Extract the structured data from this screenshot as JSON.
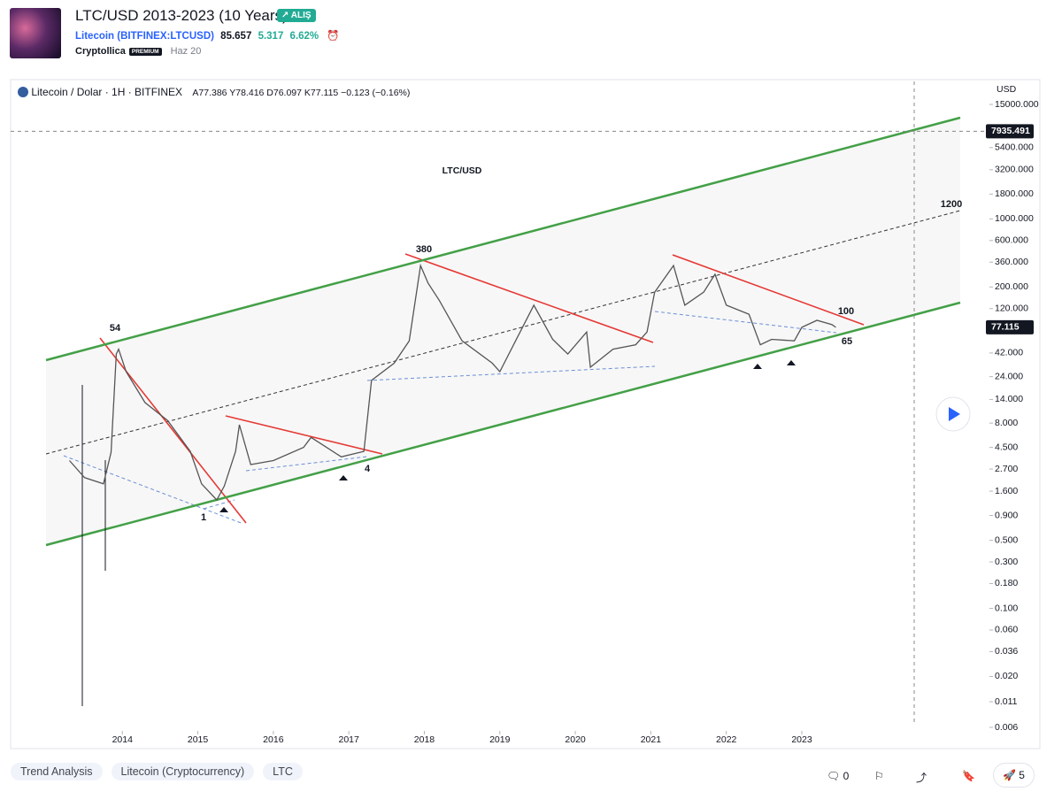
{
  "header": {
    "title": "LTC/USD 2013-2023 (10 Years)",
    "badge": "ALIŞ",
    "symbol_name": "Litecoin",
    "symbol_code": "(BITFINEX:LTCUSD)",
    "price": "85.657",
    "change": "5.317",
    "change_pct": "6.62%",
    "author": "Cryptollica",
    "author_badge": "PREMIUM",
    "date": "Haz 20"
  },
  "legend": {
    "symbol": "Litecoin / Dolar · 1H · BITFINEX",
    "ohlc": "A77.386 Y78.416 D76.097 K77.115 −0.123 (−0.16%)"
  },
  "chart_data": {
    "type": "line",
    "title": "LTC/USD",
    "y_axis_label": "USD",
    "log_scale": true,
    "color": "#555555",
    "x": [
      2013.3,
      2013.5,
      2013.75,
      2013.85,
      2013.92,
      2013.95,
      2014.05,
      2014.3,
      2014.6,
      2014.9,
      2015.05,
      2015.25,
      2015.35,
      2015.5,
      2015.55,
      2015.7,
      2016.0,
      2016.4,
      2016.5,
      2016.9,
      2017.2,
      2017.3,
      2017.6,
      2017.8,
      2017.95,
      2018.05,
      2018.2,
      2018.5,
      2018.9,
      2019.0,
      2019.3,
      2019.45,
      2019.7,
      2019.9,
      2020.15,
      2020.2,
      2020.5,
      2020.8,
      2020.95,
      2021.05,
      2021.3,
      2021.45,
      2021.7,
      2021.85,
      2022.0,
      2022.3,
      2022.45,
      2022.6,
      2022.9,
      2023.0,
      2023.2,
      2023.4,
      2023.45
    ],
    "values": [
      3.3,
      2.2,
      1.9,
      4.0,
      41,
      46,
      27,
      13,
      8.5,
      4.1,
      1.9,
      1.3,
      1.8,
      4.1,
      7.7,
      3.0,
      3.3,
      4.5,
      5.7,
      3.6,
      4.1,
      22,
      33,
      56,
      332,
      219,
      145,
      56,
      33,
      27,
      77,
      130,
      58,
      41,
      69,
      30,
      46,
      51,
      69,
      177,
      332,
      130,
      177,
      270,
      130,
      105,
      51,
      58,
      56,
      77,
      91,
      82,
      77
    ],
    "xlim": [
      2012.52,
      2025.45
    ],
    "xticks": [
      2014,
      2015,
      2016,
      2017,
      2018,
      2019,
      2020,
      2021,
      2022,
      2023
    ],
    "ylim": [
      0.006,
      15000
    ],
    "yticks": [
      {
        "value": 15000,
        "label": "15000.000"
      },
      {
        "value": 5400,
        "label": "5400.000"
      },
      {
        "value": 3200,
        "label": "3200.000"
      },
      {
        "value": 1800,
        "label": "1800.000"
      },
      {
        "value": 1000,
        "label": "1000.000"
      },
      {
        "value": 600,
        "label": "600.000"
      },
      {
        "value": 360,
        "label": "360.000"
      },
      {
        "value": 200,
        "label": "200.000"
      },
      {
        "value": 120,
        "label": "120.000"
      },
      {
        "value": 42,
        "label": "42.000"
      },
      {
        "value": 24,
        "label": "24.000"
      },
      {
        "value": 14,
        "label": "14.000"
      },
      {
        "value": 8,
        "label": "8.000"
      },
      {
        "value": 4.5,
        "label": "4.500"
      },
      {
        "value": 2.7,
        "label": "2.700"
      },
      {
        "value": 1.6,
        "label": "1.600"
      },
      {
        "value": 0.9,
        "label": "0.900"
      },
      {
        "value": 0.5,
        "label": "0.500"
      },
      {
        "value": 0.3,
        "label": "0.300"
      },
      {
        "value": 0.18,
        "label": "0.180"
      },
      {
        "value": 0.1,
        "label": "0.100"
      },
      {
        "value": 0.06,
        "label": "0.060"
      },
      {
        "value": 0.036,
        "label": "0.036"
      },
      {
        "value": 0.02,
        "label": "0.020"
      },
      {
        "value": 0.011,
        "label": "0.011"
      },
      {
        "value": 0.006,
        "label": "0.006"
      }
    ],
    "price_labels": [
      7935.491,
      77.115
    ],
    "annotations": [
      "54",
      "380",
      "1200",
      "100",
      "65",
      "1",
      "4"
    ]
  },
  "tags": [
    "Trend Analysis",
    "Litecoin (Cryptocurrency)",
    "LTC"
  ],
  "actions": {
    "comments": "0",
    "boosts": "5"
  }
}
